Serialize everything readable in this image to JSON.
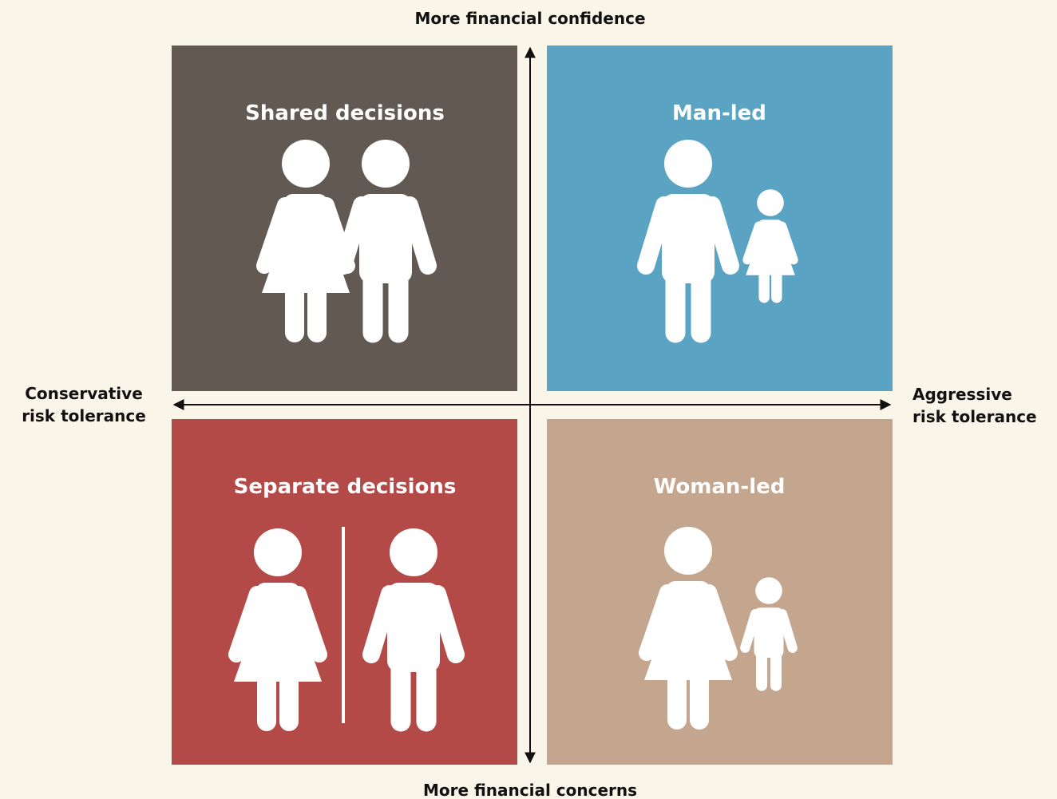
{
  "axes": {
    "top": "More financial confidence",
    "bottom": "More financial concerns",
    "left": [
      "Conservative",
      "risk tolerance"
    ],
    "right": [
      "Aggressive",
      "risk tolerance"
    ]
  },
  "quadrants": [
    {
      "label": "Shared decisions"
    },
    {
      "label": "Man-led"
    },
    {
      "label": "Separate decisions"
    },
    {
      "label": "Woman-led"
    }
  ]
}
